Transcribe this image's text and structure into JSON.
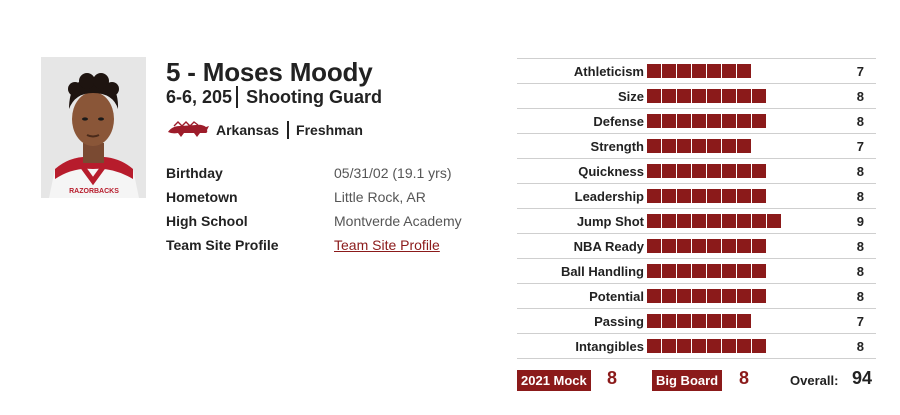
{
  "player": {
    "name": "5 - Moses Moody",
    "height_weight": "6-6, 205",
    "position": "Shooting Guard",
    "school": "Arkansas",
    "class_year": "Freshman"
  },
  "details": [
    {
      "label": "Birthday",
      "value": "05/31/02 (19.1 yrs)"
    },
    {
      "label": "Hometown",
      "value": "Little Rock, AR"
    },
    {
      "label": "High School",
      "value": "Montverde Academy"
    },
    {
      "label": "Team Site Profile",
      "value": "Team Site Profile"
    }
  ],
  "ratings": [
    {
      "label": "Athleticism",
      "value": 7
    },
    {
      "label": "Size",
      "value": 8
    },
    {
      "label": "Defense",
      "value": 8
    },
    {
      "label": "Strength",
      "value": 7
    },
    {
      "label": "Quickness",
      "value": 8
    },
    {
      "label": "Leadership",
      "value": 8
    },
    {
      "label": "Jump Shot",
      "value": 9
    },
    {
      "label": "NBA Ready",
      "value": 8
    },
    {
      "label": "Ball Handling",
      "value": 8
    },
    {
      "label": "Potential",
      "value": 8
    },
    {
      "label": "Passing",
      "value": 7
    },
    {
      "label": "Intangibles",
      "value": 8
    }
  ],
  "footer": {
    "mock_label": "2021 Mock",
    "mock_value": "8",
    "board_label": "Big Board",
    "board_value": "8",
    "overall_label": "Overall:",
    "overall_value": "94"
  },
  "colors": {
    "accent": "#8b1a1a",
    "text": "#222222",
    "muted": "#555555",
    "rule": "#cfcfcf"
  },
  "icons": {
    "school_logo": "razorback-logo-icon",
    "photo": "player-headshot"
  }
}
